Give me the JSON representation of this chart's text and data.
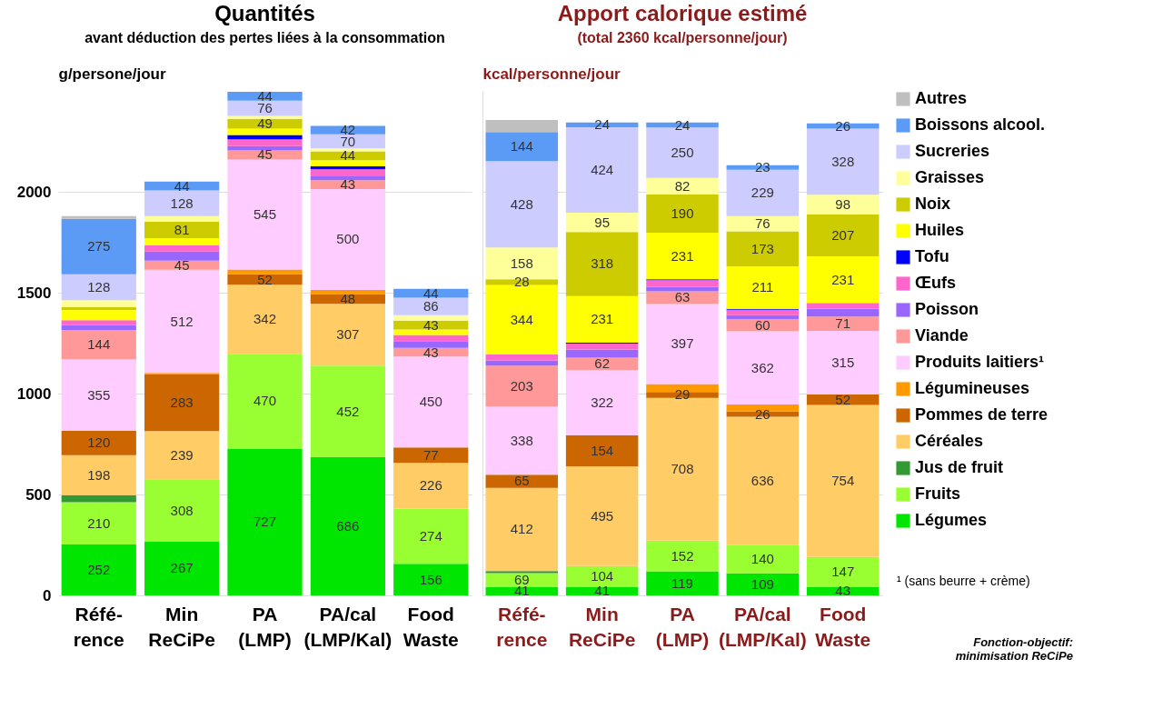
{
  "chart_data": [
    {
      "type": "bar",
      "title": "Quantités",
      "subtitle": "avant déduction des pertes liées à la consommation",
      "ylabel": "g/persone/jour",
      "categories": [
        "Réfé-\nrence",
        "Min\nReCiPe",
        "PA\n(LMP)",
        "PA/cal\n(LMP/Kal)",
        "Food\nWaste"
      ],
      "stacked": true,
      "ylim": [
        0,
        2500
      ],
      "yticks": [
        0,
        500,
        1000,
        1500,
        2000
      ],
      "grid": "y",
      "legend": false,
      "series": [
        {
          "color": "#00e600",
          "values": [
            252,
            267,
            727,
            686,
            156
          ],
          "value_labels": [
            "252",
            "267",
            "727",
            "686",
            "156"
          ]
        },
        {
          "color": "#99ff33",
          "values": [
            210,
            308,
            470,
            452,
            274
          ],
          "value_labels": [
            "210",
            "308",
            "470",
            "452",
            "274"
          ]
        },
        {
          "color": "#339933",
          "values": [
            35,
            null,
            null,
            null,
            null
          ],
          "value_labels": [
            null,
            null,
            null,
            null,
            null
          ]
        },
        {
          "color": "#ffcc66",
          "values": [
            198,
            239,
            342,
            307,
            226
          ],
          "value_labels": [
            "198",
            "239",
            "342",
            "307",
            "226"
          ]
        },
        {
          "color": "#cc6600",
          "values": [
            120,
            283,
            52,
            48,
            77
          ],
          "value_labels": [
            "120",
            "283",
            "52",
            "48",
            "77"
          ]
        },
        {
          "color": "#ff9900",
          "values": [
            null,
            5,
            24,
            21,
            null
          ],
          "value_labels": [
            null,
            null,
            null,
            null,
            null
          ]
        },
        {
          "color": "#ffccff",
          "values": [
            355,
            512,
            545,
            500,
            450
          ],
          "value_labels": [
            "355",
            "512",
            "545",
            "500",
            "450"
          ]
        },
        {
          "color": "#ff9999",
          "values": [
            144,
            45,
            45,
            43,
            43
          ],
          "value_labels": [
            "144",
            "45",
            "45",
            "43",
            "43"
          ]
        },
        {
          "color": "#9966ff",
          "values": [
            25,
            45,
            21,
            20,
            34
          ],
          "value_labels": [
            null,
            null,
            null,
            null,
            null
          ]
        },
        {
          "color": "#ff66cc",
          "values": [
            25,
            31,
            34,
            34,
            31
          ],
          "value_labels": [
            null,
            null,
            null,
            null,
            null
          ]
        },
        {
          "color": "#0000ff",
          "values": [
            null,
            null,
            22,
            15,
            null
          ],
          "value_labels": [
            null,
            null,
            null,
            null,
            null
          ]
        },
        {
          "color": "#ffff00",
          "values": [
            50,
            35,
            31,
            31,
            27
          ],
          "value_labels": [
            null,
            null,
            null,
            null,
            null
          ]
        },
        {
          "color": "#cccc00",
          "values": [
            14,
            81,
            49,
            44,
            43
          ],
          "value_labels": [
            null,
            "81",
            "49",
            "44",
            "43"
          ]
        },
        {
          "color": "#ffff99",
          "values": [
            35,
            28,
            14,
            14,
            28
          ],
          "value_labels": [
            null,
            null,
            null,
            null,
            null
          ]
        },
        {
          "color": "#ccccff",
          "values": [
            128,
            128,
            76,
            70,
            86
          ],
          "value_labels": [
            "128",
            "128",
            "76",
            "70",
            "86"
          ]
        },
        {
          "color": "#5b9bf5",
          "values": [
            275,
            44,
            44,
            42,
            44
          ],
          "value_labels": [
            "275",
            "44",
            "44",
            "42",
            "44"
          ]
        },
        {
          "color": "#bfbfbf",
          "values": [
            14,
            null,
            null,
            null,
            null
          ],
          "value_labels": [
            null,
            null,
            null,
            null,
            null
          ]
        }
      ]
    },
    {
      "type": "bar",
      "title": "Apport calorique estimé",
      "subtitle": "(total 2360 kcal/personne/jour)",
      "ylabel": "kcal/personne/jour",
      "categories": [
        "Réfé-\nrence",
        "Min\nReCiPe",
        "PA\n(LMP)",
        "PA/cal\n(LMP/Kal)",
        "Food\nWaste"
      ],
      "stacked": true,
      "ylim": [
        0,
        2500
      ],
      "yticks": [
        0,
        500,
        1000,
        1500,
        2000
      ],
      "tick_labels": "x",
      "grid": "y",
      "legend": "right",
      "annotations": [
        "¹ (sans beurre + crème)",
        "Fonction-objectif:\nminimisation ReCiPe"
      ],
      "series": [
        {
          "name": "Légumes",
          "color": "#00e600",
          "values": [
            41,
            41,
            119,
            109,
            43
          ],
          "value_labels": [
            "41",
            "41",
            "119",
            "109",
            "43"
          ]
        },
        {
          "name": "Fruits",
          "color": "#99ff33",
          "values": [
            69,
            104,
            152,
            140,
            147
          ],
          "value_labels": [
            "69",
            "104",
            "152",
            "140",
            "147"
          ]
        },
        {
          "name": "Jus de fruit",
          "color": "#339933",
          "values": [
            11,
            null,
            null,
            null,
            null
          ],
          "value_labels": [
            null,
            null,
            null,
            null,
            null
          ]
        },
        {
          "name": "Céréales",
          "color": "#ffcc66",
          "values": [
            412,
            495,
            708,
            636,
            754
          ],
          "value_labels": [
            "412",
            "495",
            "708",
            "636",
            "754"
          ]
        },
        {
          "name": "Pommes de terre",
          "color": "#cc6600",
          "values": [
            65,
            154,
            29,
            26,
            52
          ],
          "value_labels": [
            "65",
            "154",
            "29",
            "26",
            "52"
          ]
        },
        {
          "name": "Légumineuses",
          "color": "#ff9900",
          "values": [
            null,
            null,
            39,
            35,
            null
          ],
          "value_labels": [
            null,
            null,
            null,
            null,
            null
          ]
        },
        {
          "name": "Produits laitiers¹",
          "color": "#ffccff",
          "values": [
            338,
            322,
            397,
            362,
            315
          ],
          "value_labels": [
            "338",
            "322",
            "397",
            "362",
            "315"
          ]
        },
        {
          "name": "Viande",
          "color": "#ff9999",
          "values": [
            203,
            62,
            63,
            60,
            71
          ],
          "value_labels": [
            "203",
            "62",
            "63",
            "60",
            "71"
          ]
        },
        {
          "name": "Poisson",
          "color": "#9966ff",
          "values": [
            25,
            41,
            21,
            20,
            38
          ],
          "value_labels": [
            null,
            null,
            null,
            null,
            null
          ]
        },
        {
          "name": "Œufs",
          "color": "#ff66cc",
          "values": [
            30,
            29,
            34,
            28,
            29
          ],
          "value_labels": [
            null,
            null,
            null,
            null,
            null
          ]
        },
        {
          "name": "Tofu",
          "color": "#0000ff",
          "values": [
            null,
            4,
            4,
            4,
            null
          ],
          "value_labels": [
            null,
            null,
            null,
            null,
            null
          ]
        },
        {
          "name": "Huiles",
          "color": "#ffff00",
          "values": [
            344,
            231,
            231,
            211,
            231
          ],
          "value_labels": [
            "344",
            "231",
            "231",
            "211",
            "231"
          ]
        },
        {
          "name": "Noix",
          "color": "#cccc00",
          "values": [
            28,
            318,
            190,
            173,
            207
          ],
          "value_labels": [
            "28",
            "318",
            "190",
            "173",
            "207"
          ]
        },
        {
          "name": "Graisses",
          "color": "#ffff99",
          "values": [
            158,
            95,
            82,
            76,
            98
          ],
          "value_labels": [
            "158",
            "95",
            "82",
            "76",
            "98"
          ]
        },
        {
          "name": "Sucreries",
          "color": "#ccccff",
          "values": [
            428,
            424,
            250,
            229,
            328
          ],
          "value_labels": [
            "428",
            "424",
            "250",
            "229",
            "328"
          ]
        },
        {
          "name": "Boissons alcool.",
          "color": "#5b9bf5",
          "values": [
            144,
            24,
            24,
            23,
            26
          ],
          "value_labels": [
            "144",
            "24",
            "24",
            "23",
            "26"
          ]
        },
        {
          "name": "Autres",
          "color": "#bfbfbf",
          "values": [
            60,
            null,
            null,
            null,
            null
          ],
          "value_labels": [
            null,
            null,
            null,
            null,
            null
          ]
        }
      ]
    }
  ]
}
